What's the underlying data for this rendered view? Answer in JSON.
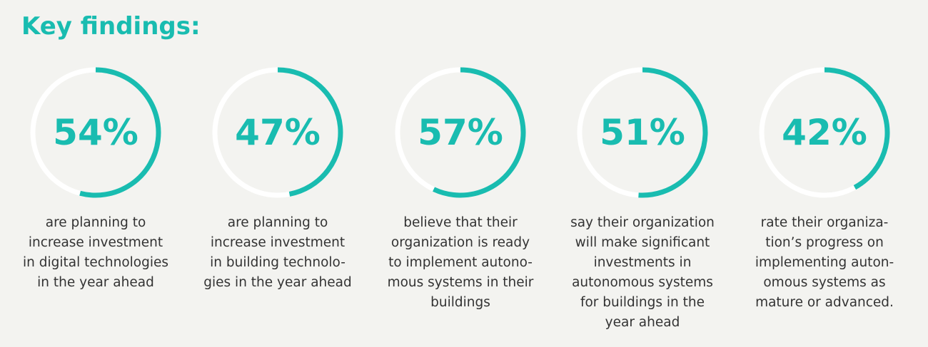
{
  "chart_data": {
    "type": "ring",
    "title": "Key findings:",
    "color": "#19bcb0",
    "track_color": "#ffffff",
    "values": [
      54,
      47,
      57,
      51,
      42
    ],
    "value_labels": [
      "54%",
      "47%",
      "57%",
      "51%",
      "42%"
    ],
    "ylim": [
      0,
      100
    ],
    "descriptions": [
      [
        "are planning to",
        "increase investment",
        "in digital technologies",
        "in the year ahead"
      ],
      [
        "are planning to",
        "increase investment",
        "in building technolo-",
        "gies in the year ahead"
      ],
      [
        "believe that their",
        "organization is ready",
        "to implement autono-",
        "mous systems in their",
        "buildings"
      ],
      [
        "say their organization",
        "will make significant",
        "investments in",
        "autonomous systems",
        "for buildings in the",
        "year ahead"
      ],
      [
        "rate their organiza-",
        "tion’s progress on",
        "implementing auton-",
        "omous systems as",
        "mature or advanced."
      ]
    ]
  }
}
